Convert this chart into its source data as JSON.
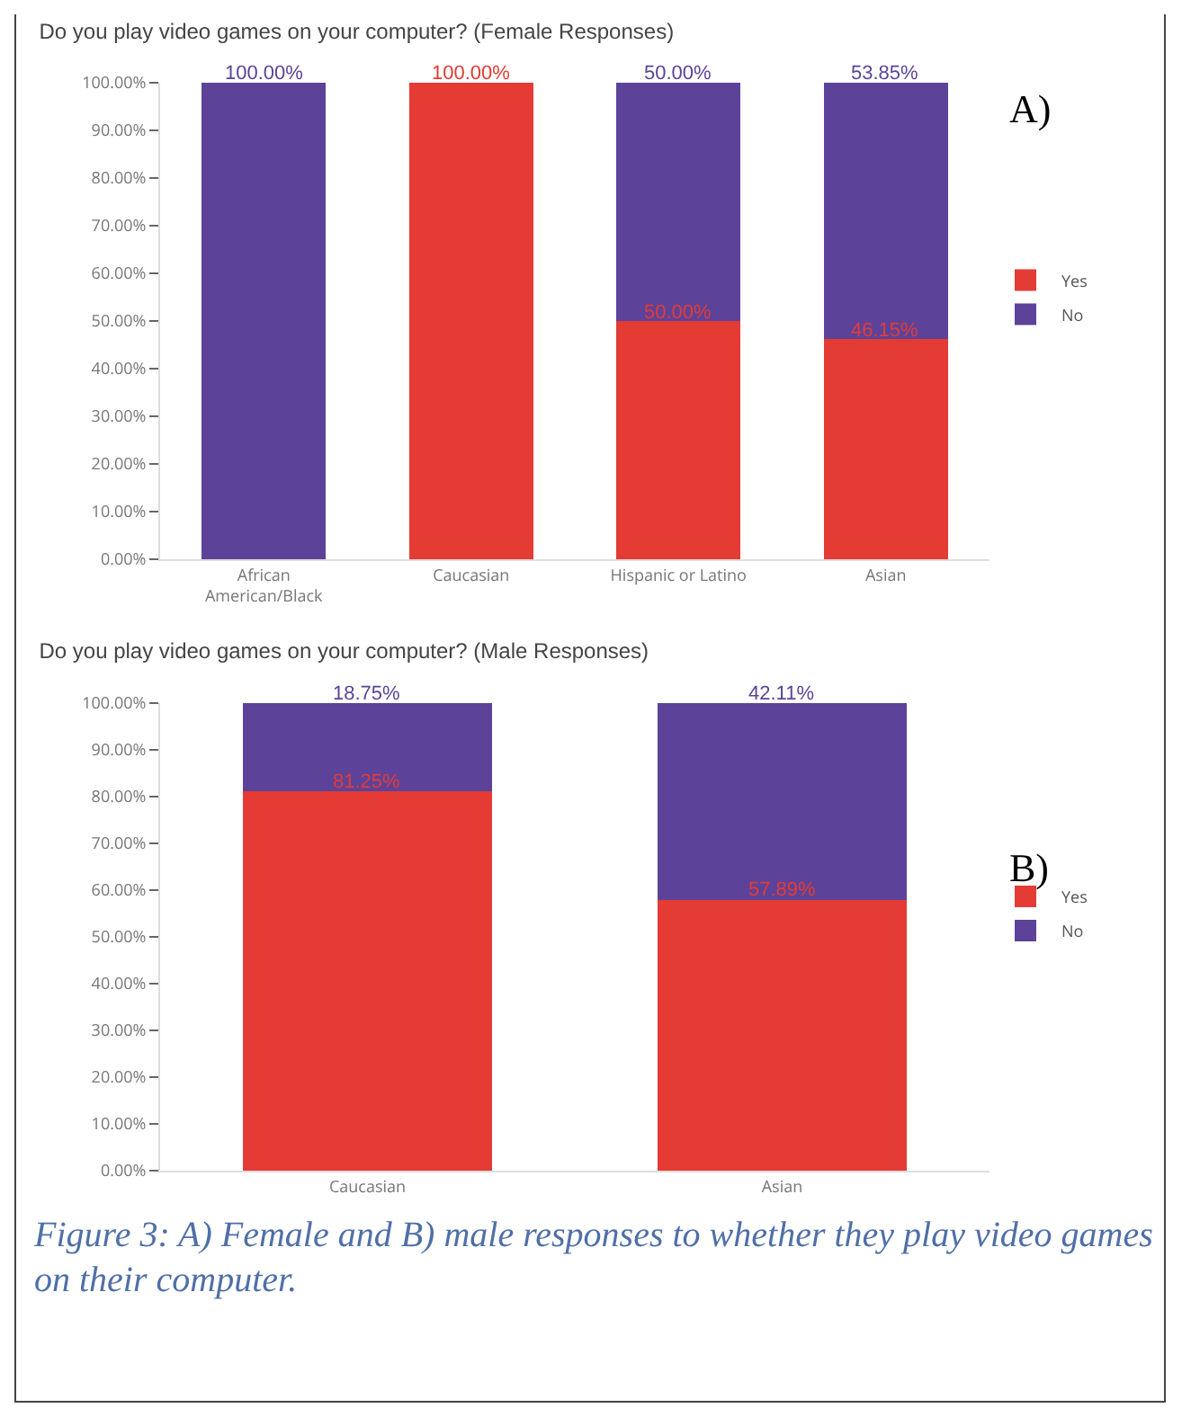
{
  "chart_data": [
    {
      "type": "bar",
      "title": "Do you play video games on your computer? (Female Responses)",
      "stacked": true,
      "categories": [
        "African American/Black",
        "Caucasian",
        "Hispanic or Latino",
        "Asian"
      ],
      "series": [
        {
          "name": "Yes",
          "color": "#e43b35",
          "values": [
            0,
            100,
            50,
            46.15
          ],
          "value_labels": [
            null,
            "100.00%",
            "50.00%",
            "46.15%"
          ]
        },
        {
          "name": "No",
          "color": "#5c4399",
          "values": [
            100,
            0,
            50,
            53.85
          ],
          "value_labels": [
            "100.00%",
            null,
            "50.00%",
            "53.85%"
          ]
        }
      ],
      "ylim": [
        0,
        100
      ],
      "yticks": [
        {
          "value": 0,
          "label": "0.00%"
        },
        {
          "value": 10,
          "label": "10.00%"
        },
        {
          "value": 20,
          "label": "20.00%"
        },
        {
          "value": 30,
          "label": "30.00%"
        },
        {
          "value": 40,
          "label": "40.00%"
        },
        {
          "value": 50,
          "label": "50.00%"
        },
        {
          "value": 60,
          "label": "60.00%"
        },
        {
          "value": 70,
          "label": "70.00%"
        },
        {
          "value": 80,
          "label": "80.00%"
        },
        {
          "value": 90,
          "label": "90.00%"
        },
        {
          "value": 100,
          "label": "100.00%"
        }
      ],
      "grid": false,
      "legend": "right",
      "annotations": [
        "A)"
      ]
    },
    {
      "type": "bar",
      "title": "Do you play video games on your computer? (Male Responses)",
      "stacked": true,
      "categories": [
        "Caucasian",
        "Asian"
      ],
      "series": [
        {
          "name": "Yes",
          "color": "#e43b35",
          "values": [
            81.25,
            57.89
          ],
          "value_labels": [
            "81.25%",
            "57.89%"
          ]
        },
        {
          "name": "No",
          "color": "#5c4399",
          "values": [
            18.75,
            42.11
          ],
          "value_labels": [
            "18.75%",
            "42.11%"
          ]
        }
      ],
      "ylim": [
        0,
        100
      ],
      "yticks": [
        {
          "value": 0,
          "label": "0.00%"
        },
        {
          "value": 10,
          "label": "10.00%"
        },
        {
          "value": 20,
          "label": "20.00%"
        },
        {
          "value": 30,
          "label": "30.00%"
        },
        {
          "value": 40,
          "label": "40.00%"
        },
        {
          "value": 50,
          "label": "50.00%"
        },
        {
          "value": 60,
          "label": "60.00%"
        },
        {
          "value": 70,
          "label": "70.00%"
        },
        {
          "value": 80,
          "label": "80.00%"
        },
        {
          "value": 90,
          "label": "90.00%"
        },
        {
          "value": 100,
          "label": "100.00%"
        }
      ],
      "grid": false,
      "legend": "right",
      "annotations": [
        "B)",
        "Figure 3: A) Female and B) male responses to whether they play video games on their computer."
      ]
    }
  ]
}
